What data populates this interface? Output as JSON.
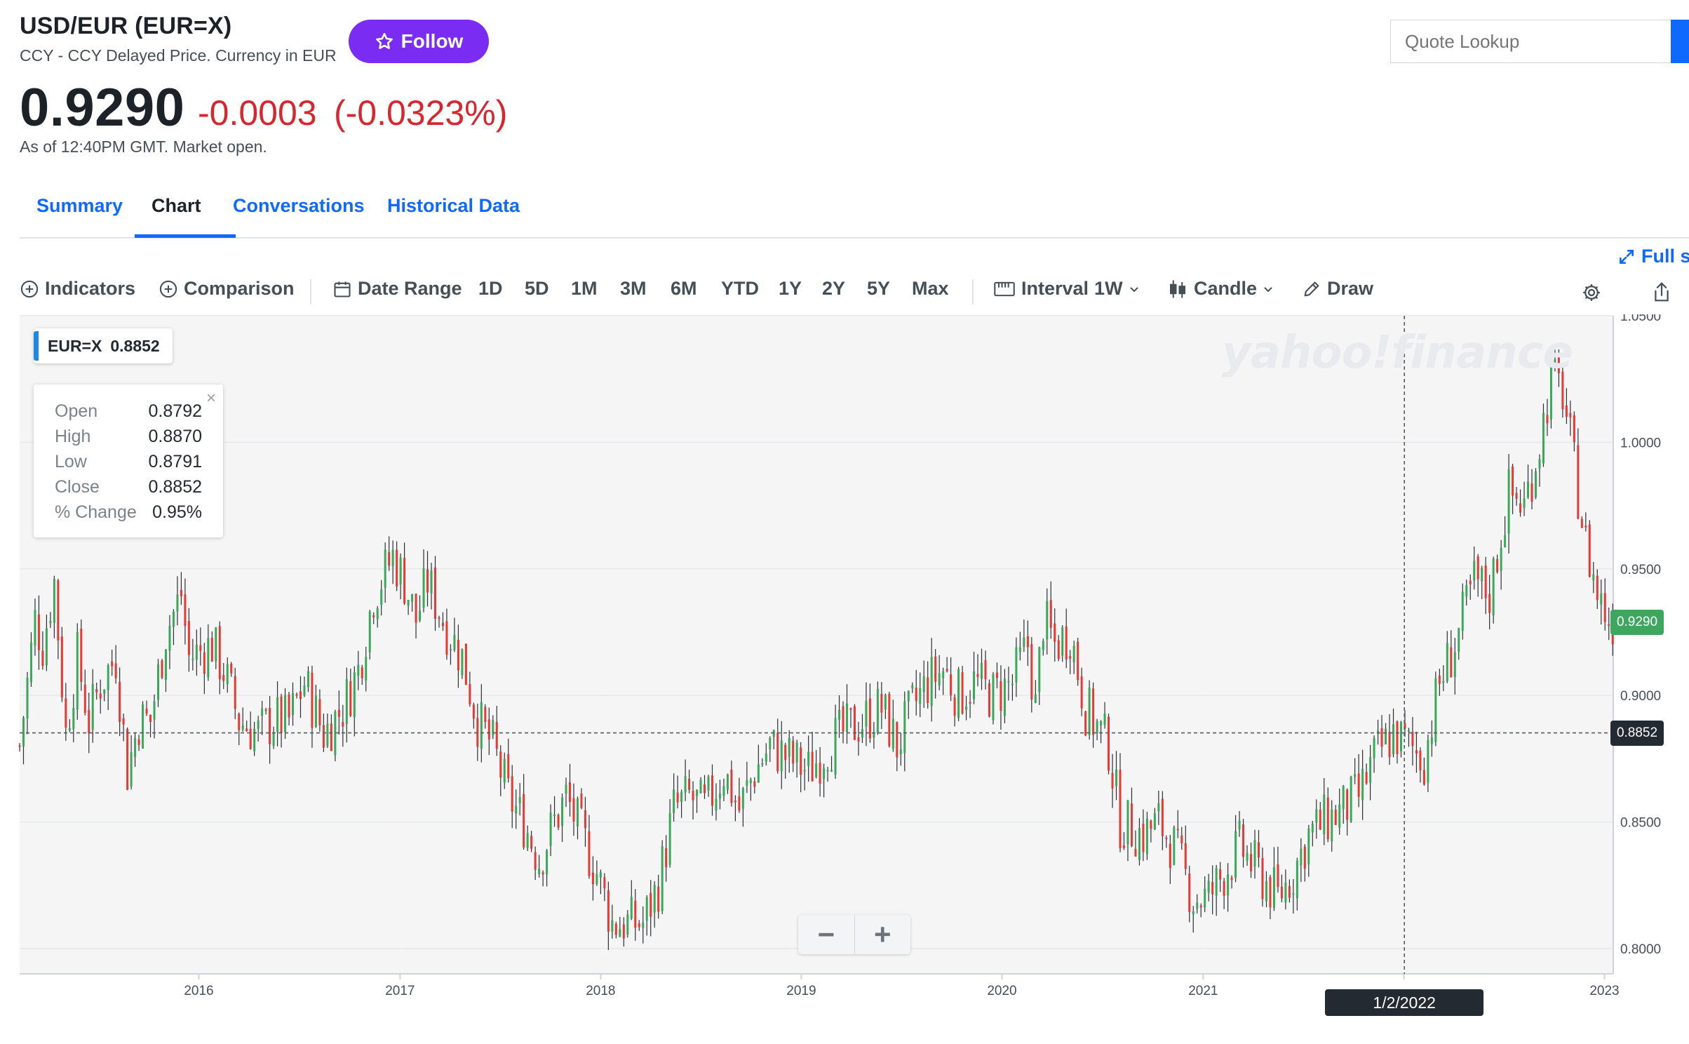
{
  "header": {
    "title": "USD/EUR (EUR=X)",
    "subtitle": "CCY - CCY Delayed Price. Currency in EUR",
    "follow_label": "Follow",
    "price": "0.9290",
    "change": "-0.0003",
    "change_pct": "(-0.0323%)",
    "as_of": "As of 12:40PM GMT. Market open."
  },
  "search": {
    "placeholder": "Quote Lookup"
  },
  "tabs": [
    {
      "label": "Summary"
    },
    {
      "label": "Chart"
    },
    {
      "label": "Conversations"
    },
    {
      "label": "Historical Data"
    }
  ],
  "toolbar": {
    "fullscreen_label": "Full sc",
    "indicators_label": "Indicators",
    "comparison_label": "Comparison",
    "date_range_label": "Date Range",
    "ranges": [
      "1D",
      "5D",
      "1M",
      "3M",
      "6M",
      "YTD",
      "1Y",
      "2Y",
      "5Y",
      "Max"
    ],
    "interval_label": "Interval",
    "interval_value": "1W",
    "chart_type_label": "Candle",
    "draw_label": "Draw"
  },
  "legend": {
    "symbol": "EUR=X",
    "value": "0.8852"
  },
  "ohlc": [
    {
      "key": "Open",
      "value": "0.8792"
    },
    {
      "key": "High",
      "value": "0.8870"
    },
    {
      "key": "Low",
      "value": "0.8791"
    },
    {
      "key": "Close",
      "value": "0.8852"
    },
    {
      "key": "% Change",
      "value": "0.95%"
    }
  ],
  "watermark": "yahoo!finance",
  "crosshair": {
    "date_label": "1/2/2022",
    "price_label": "0.8852"
  },
  "last_price_label": "0.9290",
  "colors": {
    "up": "#3aa85a",
    "down": "#e53935",
    "accent": "#0f69ff",
    "follow": "#7b2cf2",
    "last_price": "#3ea65f"
  },
  "chart_data": {
    "type": "candlestick",
    "interval": "weekly",
    "ylim": [
      0.79,
      1.05
    ],
    "y_ticks": [
      "1.0500",
      "1.0000",
      "0.9500",
      "0.9000",
      "0.8500",
      "0.8000"
    ],
    "x_ticks": [
      "2016",
      "2017",
      "2018",
      "2019",
      "2020",
      "2021",
      "2022",
      "2023"
    ],
    "x_tick_labels": [
      "2016",
      "2017",
      "2018",
      "2019",
      "2020",
      "2021",
      "",
      "2023"
    ],
    "x_range": [
      "2015-02-09",
      "2023-01-17"
    ],
    "close_path": [
      [
        "2015-02-09",
        0.88
      ],
      [
        "2015-03-09",
        0.93
      ],
      [
        "2015-03-23",
        0.92
      ],
      [
        "2015-04-13",
        0.945
      ],
      [
        "2015-05-04",
        0.885
      ],
      [
        "2015-05-25",
        0.915
      ],
      [
        "2015-06-15",
        0.89
      ],
      [
        "2015-07-06",
        0.905
      ],
      [
        "2015-08-03",
        0.915
      ],
      [
        "2015-08-24",
        0.87
      ],
      [
        "2015-09-14",
        0.89
      ],
      [
        "2015-10-05",
        0.89
      ],
      [
        "2015-11-02",
        0.925
      ],
      [
        "2015-11-30",
        0.94
      ],
      [
        "2015-12-14",
        0.915
      ],
      [
        "2016-01-25",
        0.92
      ],
      [
        "2016-02-15",
        0.91
      ],
      [
        "2016-03-14",
        0.89
      ],
      [
        "2016-04-18",
        0.885
      ],
      [
        "2016-05-16",
        0.89
      ],
      [
        "2016-06-13",
        0.89
      ],
      [
        "2016-07-11",
        0.905
      ],
      [
        "2016-08-15",
        0.885
      ],
      [
        "2016-09-19",
        0.895
      ],
      [
        "2016-10-17",
        0.91
      ],
      [
        "2016-11-14",
        0.94
      ],
      [
        "2016-12-19",
        0.955
      ],
      [
        "2017-01-09",
        0.945
      ],
      [
        "2017-01-30",
        0.93
      ],
      [
        "2017-02-20",
        0.945
      ],
      [
        "2017-03-20",
        0.93
      ],
      [
        "2017-04-24",
        0.915
      ],
      [
        "2017-05-22",
        0.89
      ],
      [
        "2017-06-19",
        0.88
      ],
      [
        "2017-07-17",
        0.86
      ],
      [
        "2017-08-14",
        0.85
      ],
      [
        "2017-09-11",
        0.835
      ],
      [
        "2017-10-09",
        0.85
      ],
      [
        "2017-10-30",
        0.86
      ],
      [
        "2017-11-27",
        0.845
      ],
      [
        "2017-12-25",
        0.83
      ],
      [
        "2018-01-22",
        0.81
      ],
      [
        "2018-02-19",
        0.81
      ],
      [
        "2018-03-19",
        0.81
      ],
      [
        "2018-04-16",
        0.825
      ],
      [
        "2018-05-14",
        0.855
      ],
      [
        "2018-06-11",
        0.86
      ],
      [
        "2018-07-09",
        0.855
      ],
      [
        "2018-08-13",
        0.87
      ],
      [
        "2018-09-10",
        0.855
      ],
      [
        "2018-10-08",
        0.87
      ],
      [
        "2018-11-05",
        0.88
      ],
      [
        "2018-12-10",
        0.875
      ],
      [
        "2019-01-14",
        0.87
      ],
      [
        "2019-02-18",
        0.88
      ],
      [
        "2019-03-18",
        0.885
      ],
      [
        "2019-04-22",
        0.89
      ],
      [
        "2019-05-27",
        0.895
      ],
      [
        "2019-06-24",
        0.88
      ],
      [
        "2019-07-22",
        0.895
      ],
      [
        "2019-08-19",
        0.905
      ],
      [
        "2019-09-16",
        0.91
      ],
      [
        "2019-10-14",
        0.9
      ],
      [
        "2019-11-11",
        0.905
      ],
      [
        "2019-12-16",
        0.9
      ],
      [
        "2020-01-20",
        0.905
      ],
      [
        "2020-02-17",
        0.92
      ],
      [
        "2020-03-02",
        0.895
      ],
      [
        "2020-03-16",
        0.93
      ],
      [
        "2020-04-06",
        0.92
      ],
      [
        "2020-05-04",
        0.925
      ],
      [
        "2020-06-01",
        0.895
      ],
      [
        "2020-07-13",
        0.88
      ],
      [
        "2020-08-03",
        0.85
      ],
      [
        "2020-09-14",
        0.845
      ],
      [
        "2020-10-12",
        0.85
      ],
      [
        "2020-11-09",
        0.84
      ],
      [
        "2020-12-14",
        0.82
      ],
      [
        "2021-01-11",
        0.82
      ],
      [
        "2021-02-08",
        0.83
      ],
      [
        "2021-03-08",
        0.84
      ],
      [
        "2021-04-12",
        0.83
      ],
      [
        "2021-05-17",
        0.82
      ],
      [
        "2021-06-14",
        0.83
      ],
      [
        "2021-07-12",
        0.845
      ],
      [
        "2021-08-09",
        0.85
      ],
      [
        "2021-09-13",
        0.855
      ],
      [
        "2021-10-11",
        0.86
      ],
      [
        "2021-11-08",
        0.875
      ],
      [
        "2021-12-13",
        0.885
      ],
      [
        "2022-01-10",
        0.88
      ],
      [
        "2022-02-07",
        0.875
      ],
      [
        "2022-03-07",
        0.905
      ],
      [
        "2022-04-04",
        0.92
      ],
      [
        "2022-05-09",
        0.945
      ],
      [
        "2022-06-06",
        0.94
      ],
      [
        "2022-07-11",
        0.98
      ],
      [
        "2022-08-08",
        0.975
      ],
      [
        "2022-09-05",
        1.0
      ],
      [
        "2022-09-26",
        1.025
      ],
      [
        "2022-10-17",
        1.02
      ],
      [
        "2022-11-07",
        0.99
      ],
      [
        "2022-11-28",
        0.96
      ],
      [
        "2022-12-19",
        0.94
      ],
      [
        "2023-01-09",
        0.93
      ],
      [
        "2023-01-17",
        0.929
      ]
    ],
    "crosshair": {
      "date": "2022-01-02",
      "price": 0.8852
    },
    "last_price": 0.929
  }
}
